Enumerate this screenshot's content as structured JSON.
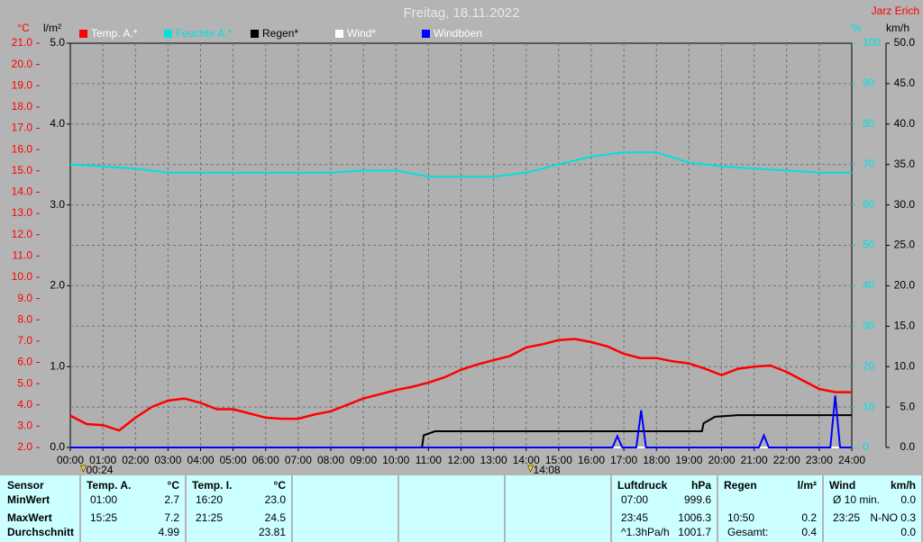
{
  "chart_data": {
    "type": "line",
    "title": "Freitag, 18.11.2022",
    "author": "Jarz Erich",
    "xlim": [
      0,
      24
    ],
    "xticks": [
      {
        "value": 0,
        "label": "00:00"
      },
      {
        "value": 1,
        "label": "01:00"
      },
      {
        "value": 2,
        "label": "02:00"
      },
      {
        "value": 3,
        "label": "03:00"
      },
      {
        "value": 4,
        "label": "04:00"
      },
      {
        "value": 5,
        "label": "05:00"
      },
      {
        "value": 6,
        "label": "06:00"
      },
      {
        "value": 7,
        "label": "07:00"
      },
      {
        "value": 8,
        "label": "08:00"
      },
      {
        "value": 9,
        "label": "09:00"
      },
      {
        "value": 10,
        "label": "10:00"
      },
      {
        "value": 11,
        "label": "11:00"
      },
      {
        "value": 12,
        "label": "12:00"
      },
      {
        "value": 13,
        "label": "13:00"
      },
      {
        "value": 14,
        "label": "14:00"
      },
      {
        "value": 15,
        "label": "15:00"
      },
      {
        "value": 16,
        "label": "16:00"
      },
      {
        "value": 17,
        "label": "17:00"
      },
      {
        "value": 18,
        "label": "18:00"
      },
      {
        "value": 19,
        "label": "19:00"
      },
      {
        "value": 20,
        "label": "20:00"
      },
      {
        "value": 21,
        "label": "21:00"
      },
      {
        "value": 22,
        "label": "22:00"
      },
      {
        "value": 23,
        "label": "23:00"
      },
      {
        "value": 24,
        "label": "24:00"
      }
    ],
    "grid": true,
    "axes": [
      {
        "unit": "°C",
        "color": "#ff0000",
        "lim": [
          2,
          21
        ],
        "ticks": [
          {
            "value": 2,
            "label": "2.0"
          },
          {
            "value": 3,
            "label": "3.0"
          },
          {
            "value": 4,
            "label": "4.0"
          },
          {
            "value": 5,
            "label": "5.0"
          },
          {
            "value": 6,
            "label": "6.0"
          },
          {
            "value": 7,
            "label": "7.0"
          },
          {
            "value": 8,
            "label": "8.0"
          },
          {
            "value": 9,
            "label": "9.0"
          },
          {
            "value": 10,
            "label": "10.0"
          },
          {
            "value": 11,
            "label": "11.0"
          },
          {
            "value": 12,
            "label": "12.0"
          },
          {
            "value": 13,
            "label": "13.0"
          },
          {
            "value": 14,
            "label": "14.0"
          },
          {
            "value": 15,
            "label": "15.0"
          },
          {
            "value": 16,
            "label": "16.0"
          },
          {
            "value": 17,
            "label": "17.0"
          },
          {
            "value": 18,
            "label": "18.0"
          },
          {
            "value": 19,
            "label": "19.0"
          },
          {
            "value": 20,
            "label": "20.0"
          },
          {
            "value": 21,
            "label": "21.0"
          }
        ]
      },
      {
        "unit": "l/m²",
        "color": "#000000",
        "lim": [
          0,
          5
        ],
        "ticks": [
          {
            "value": 0,
            "label": "0.0"
          },
          {
            "value": 1,
            "label": "1.0"
          },
          {
            "value": 2,
            "label": "2.0"
          },
          {
            "value": 3,
            "label": "3.0"
          },
          {
            "value": 4,
            "label": "4.0"
          },
          {
            "value": 5,
            "label": "5.0"
          }
        ]
      },
      {
        "unit": "%",
        "color": "#00e0e0",
        "lim": [
          0,
          100
        ],
        "ticks": [
          0,
          10,
          20,
          30,
          40,
          50,
          60,
          70,
          80,
          90,
          100
        ]
      },
      {
        "unit": "km/h",
        "color": "#000000",
        "lim": [
          0,
          50
        ],
        "ticks": [
          {
            "value": 0,
            "label": "0.0"
          },
          {
            "value": 5,
            "label": "5.0"
          },
          {
            "value": 10,
            "label": "10.0"
          },
          {
            "value": 15,
            "label": "15.0"
          },
          {
            "value": 20,
            "label": "20.0"
          },
          {
            "value": 25,
            "label": "25.0"
          },
          {
            "value": 30,
            "label": "30.0"
          },
          {
            "value": 35,
            "label": "35.0"
          },
          {
            "value": 40,
            "label": "40.0"
          },
          {
            "value": 45,
            "label": "45.0"
          },
          {
            "value": 50,
            "label": "50.0"
          }
        ]
      }
    ],
    "series": [
      {
        "name": "Temp. A.*",
        "color": "#ff0000",
        "axis": 0,
        "x": [
          0,
          0.5,
          1,
          1.5,
          2,
          2.5,
          3,
          3.5,
          4,
          4.5,
          5,
          5.5,
          6,
          6.5,
          7,
          7.5,
          8,
          8.5,
          9,
          9.5,
          10,
          10.5,
          11,
          11.5,
          12,
          12.5,
          13,
          13.5,
          14,
          14.5,
          15,
          15.5,
          16,
          16.5,
          17,
          17.5,
          18,
          18.5,
          19,
          19.5,
          20,
          20.5,
          21,
          21.5,
          22,
          22.5,
          23,
          23.5,
          24
        ],
        "values": [
          3.5,
          3.1,
          3.05,
          2.8,
          3.4,
          3.9,
          4.2,
          4.3,
          4.1,
          3.8,
          3.8,
          3.6,
          3.4,
          3.35,
          3.35,
          3.55,
          3.7,
          4.0,
          4.3,
          4.5,
          4.7,
          4.85,
          5.05,
          5.3,
          5.65,
          5.9,
          6.1,
          6.3,
          6.7,
          6.85,
          7.05,
          7.1,
          6.95,
          6.75,
          6.4,
          6.2,
          6.2,
          6.05,
          5.95,
          5.7,
          5.4,
          5.7,
          5.8,
          5.85,
          5.55,
          5.15,
          4.75,
          4.6,
          4.6
        ]
      },
      {
        "name": "Feuchte A.*",
        "color": "#00e0e0",
        "axis": 2,
        "x": [
          0,
          1,
          2,
          3,
          4,
          5,
          6,
          7,
          8,
          9,
          10,
          11,
          12,
          13,
          14,
          15,
          16,
          17,
          18,
          19,
          20,
          21,
          22,
          23,
          24
        ],
        "values": [
          70,
          69.5,
          69,
          68,
          68,
          68,
          68,
          68,
          68,
          68.5,
          68.5,
          67,
          67,
          67,
          68,
          70,
          72,
          73,
          73,
          70.5,
          69.5,
          69,
          68.5,
          68,
          68
        ]
      },
      {
        "name": "Regen*",
        "color": "#000000",
        "axis": 1,
        "x": [
          0,
          10.8,
          10.85,
          11.2,
          19.4,
          19.45,
          19.8,
          20.5,
          24
        ],
        "values": [
          0,
          0,
          0.15,
          0.2,
          0.2,
          0.3,
          0.38,
          0.4,
          0.4
        ]
      },
      {
        "name": "Wind*",
        "color": "#ffffff",
        "axis": 3,
        "x": [
          0,
          24
        ],
        "values": [
          0,
          0
        ]
      },
      {
        "name": "Windböen",
        "color": "#0000ff",
        "axis": 3,
        "x": [
          0,
          16.65,
          16.8,
          16.95,
          17.38,
          17.53,
          17.68,
          21.15,
          21.3,
          21.45,
          23.34,
          23.49,
          23.64,
          24
        ],
        "values": [
          0,
          0,
          1.4,
          0,
          0,
          4.6,
          0,
          0,
          1.5,
          0,
          0,
          6.4,
          0,
          0
        ]
      }
    ],
    "annotations": [
      {
        "x": 0.4,
        "label": "00:24"
      },
      {
        "x": 14.133,
        "label": "14:08"
      }
    ]
  },
  "table": {
    "row_labels": [
      "Sensor",
      "MinWert",
      "MaxWert",
      "Durchschnitt"
    ],
    "columns": [
      {
        "header": "Temp. A.",
        "unit": "°C",
        "rows": [
          [
            "01:00",
            "2.7"
          ],
          [
            "15:25",
            "7.2"
          ],
          [
            null,
            "4.99"
          ]
        ]
      },
      {
        "header": "Temp. I.",
        "unit": "°C",
        "rows": [
          [
            "16:20",
            "23.0"
          ],
          [
            "21:25",
            "24.5"
          ],
          [
            null,
            "23.81"
          ]
        ]
      },
      {
        "header": "Luftdruck",
        "unit": "hPa",
        "rows": [
          [
            "07:00",
            "999.6"
          ],
          [
            "23:45",
            "1006.3"
          ],
          [
            "^1.3hPa/h",
            "1001.7"
          ]
        ]
      },
      {
        "header": "Regen",
        "unit": "l/m²",
        "rows": [
          [
            null,
            null
          ],
          [
            "10:50",
            "0.2"
          ],
          [
            "Gesamt:",
            "0.4"
          ]
        ]
      },
      {
        "header": "Wind",
        "unit": "km/h",
        "rows": [
          [
            "Ø 10 min.",
            "0.0"
          ],
          [
            "23:25",
            "N-NO 0.3"
          ],
          [
            null,
            "0.0"
          ]
        ]
      }
    ]
  }
}
